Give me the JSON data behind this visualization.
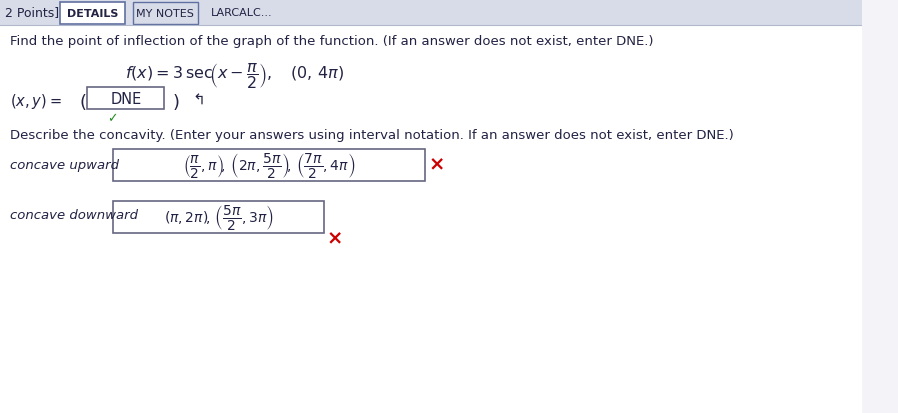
{
  "bg_color": "#e8eaf0",
  "white": "#ffffff",
  "black": "#1a1a2e",
  "dark_text": "#222244",
  "red": "#cc0000",
  "green": "#228b22",
  "tab_border": "#6070a0",
  "box_border": "#666680",
  "top_bar_bg": "#d8dce8",
  "content_bg": "#f4f4f8",
  "left_panel_bg": "#d0d4e0",
  "tab1": "DETAILS",
  "tab2": "MY NOTES",
  "tab3": "LARCALC...",
  "header_left": "2 Points]",
  "instruction": "Find the point of inflection of the graph of the function. (If an answer does not exist, enter DNE.)",
  "concavity_instruction": "Describe the concavity. (Enter your answers using interval notation. If an answer does not exist, enter DNE.)",
  "concave_upward_label": "concave upward",
  "concave_downward_label": "concave downward",
  "dne_text": "DNE",
  "checkmark": "✓",
  "x_mark": "×",
  "cursor": "↲"
}
